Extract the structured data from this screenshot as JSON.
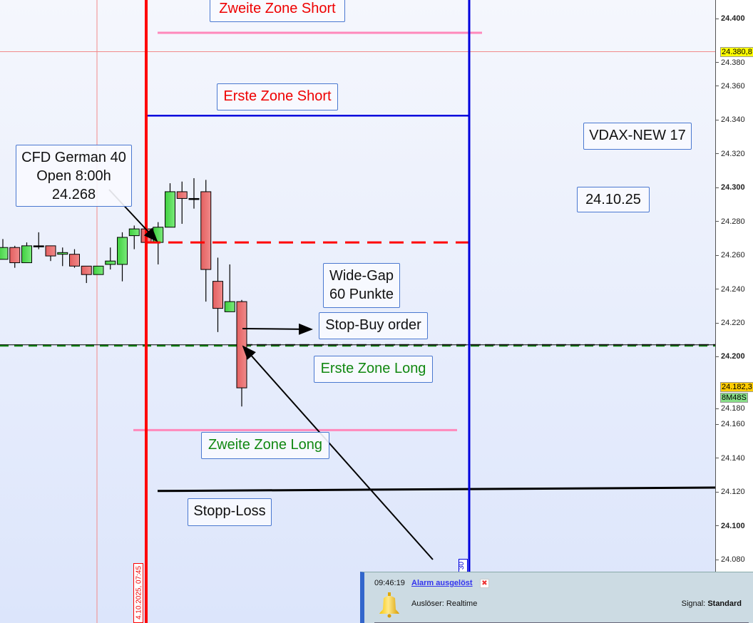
{
  "chart_data": {
    "type": "candlestick",
    "instrument_note": "CFD German 40",
    "ylim": [
      24072,
      24411
    ],
    "y_ticks": [
      "24.400",
      "24.380",
      "24.360",
      "24.340",
      "24.320",
      "24.300",
      "24.280",
      "24.260",
      "24.240",
      "24.220",
      "24.200",
      "24.180",
      "24.160",
      "24.140",
      "24.120",
      "24.100",
      "24.080"
    ],
    "y_tick_values": [
      24400,
      24380,
      24360,
      24340,
      24320,
      24300,
      24280,
      24260,
      24240,
      24220,
      24200,
      24180,
      24160,
      24140,
      24120,
      24100,
      24080
    ],
    "candles": [
      {
        "o": 24258,
        "h": 24270,
        "l": 24258,
        "c": 24265
      },
      {
        "o": 24265,
        "h": 24266,
        "l": 24253,
        "c": 24256
      },
      {
        "o": 24256,
        "h": 24268,
        "l": 24256,
        "c": 24266
      },
      {
        "o": 24266,
        "h": 24274,
        "l": 24264,
        "c": 24266
      },
      {
        "o": 24266,
        "h": 24266,
        "l": 24257,
        "c": 24260
      },
      {
        "o": 24261,
        "h": 24265,
        "l": 24254,
        "c": 24262
      },
      {
        "o": 24261,
        "h": 24264,
        "l": 24253,
        "c": 24254
      },
      {
        "o": 24254,
        "h": 24254,
        "l": 24244,
        "c": 24249
      },
      {
        "o": 24249,
        "h": 24254,
        "l": 24249,
        "c": 24254
      },
      {
        "o": 24255,
        "h": 24265,
        "l": 24252,
        "c": 24257
      },
      {
        "o": 24255,
        "h": 24274,
        "l": 24245,
        "c": 24271
      },
      {
        "o": 24272,
        "h": 24278,
        "l": 24264,
        "c": 24276
      },
      {
        "o": 24276,
        "h": 24276,
        "l": 24268,
        "c": 24268
      },
      {
        "o": 24268,
        "h": 24280,
        "l": 24255,
        "c": 24277
      },
      {
        "o": 24277,
        "h": 24303,
        "l": 24277,
        "c": 24298
      },
      {
        "o": 24298,
        "h": 24304,
        "l": 24279,
        "c": 24294
      },
      {
        "o": 24294,
        "h": 24306,
        "l": 24288,
        "c": 24294
      },
      {
        "o": 24298,
        "h": 24305,
        "l": 24233,
        "c": 24252
      },
      {
        "o": 24245,
        "h": 24259,
        "l": 24215,
        "c": 24229
      },
      {
        "o": 24227,
        "h": 24255,
        "l": 24227,
        "c": 24233
      },
      {
        "o": 24233,
        "h": 24234,
        "l": 24171,
        "c": 24182
      }
    ],
    "levels": {
      "zweite_zone_short": 24392,
      "crosshair": 24380.8,
      "erste_zone_short": 24343,
      "open_8h": 24268,
      "erste_zone_long": 24207,
      "zweite_zone_long": 24157,
      "stopp_loss_start": 24121,
      "stopp_loss_end": 24123
    },
    "grid": false
  },
  "colors": {
    "red": "#ff0000",
    "blue": "#0000dd",
    "pink": "#ff88bb",
    "green_text": "#118811",
    "bull": "#55dd55",
    "bear": "#e86b6b"
  },
  "annotations": {
    "zweite_zone_short": "Zweite Zone Short",
    "erste_zone_short": "Erste Zone Short",
    "cfd_line1": "CFD German 40",
    "cfd_line2": "Open 8:00h",
    "cfd_line3": "24.268",
    "vdax": "VDAX-NEW 17",
    "date": "24.10.25",
    "widegap_line1": "Wide-Gap",
    "widegap_line2": "60 Punkte",
    "stop_buy": "Stop-Buy order",
    "erste_zone_long": "Erste Zone Long",
    "zweite_zone_long": "Zweite Zone Long",
    "stopp_loss": "Stopp-Loss"
  },
  "axis_labels": {
    "crosshair_price": "24.380,8",
    "last_price": "24.182,3",
    "countdown": "8M48S",
    "crosshair_time": "4.10.2025, 07:45",
    "blue_line_time": "30"
  },
  "alarm": {
    "time": "09:46:19",
    "title": "Alarm ausgelöst",
    "close_icon": "close-icon",
    "bell_icon": "bell-icon",
    "trigger_label": "Auslöser:",
    "trigger_value": "Realtime",
    "signal_label": "Signal:",
    "signal_value": "Standard"
  }
}
